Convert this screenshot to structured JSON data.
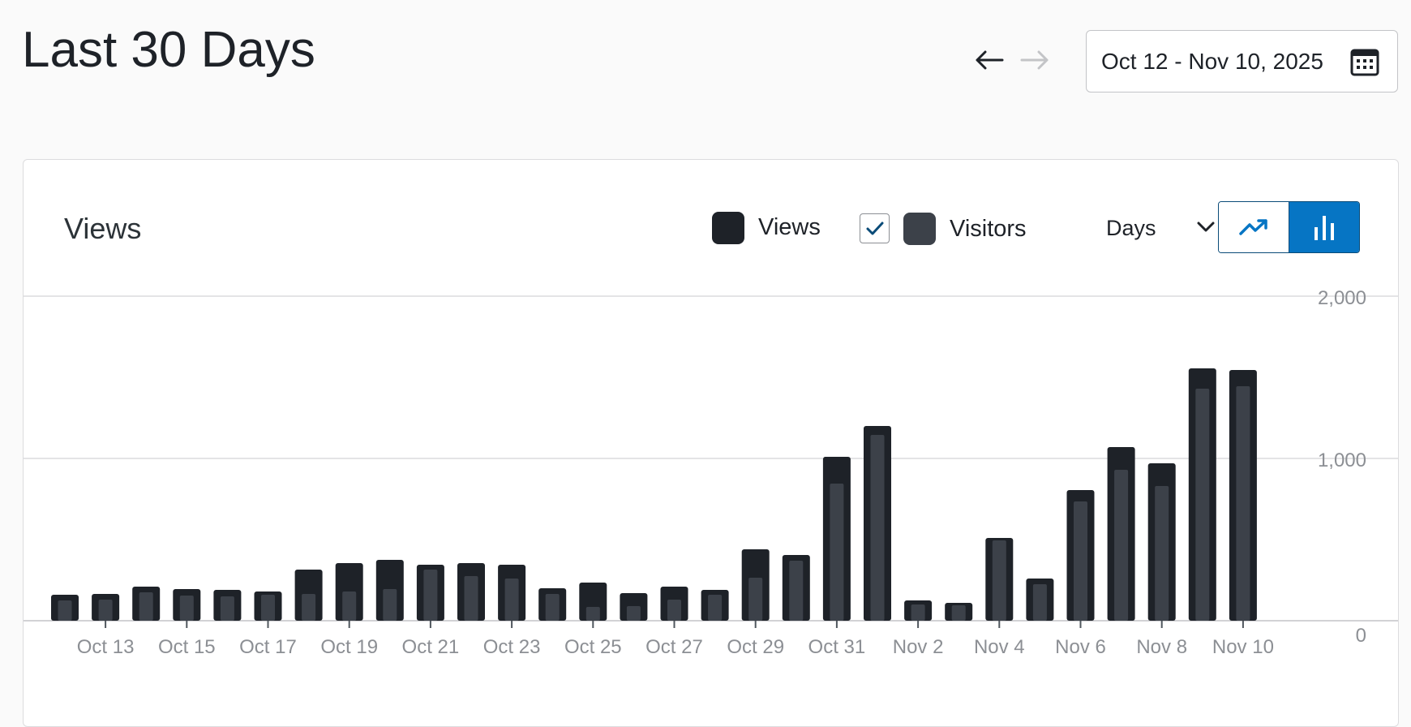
{
  "header": {
    "title": "Last 30 Days",
    "date_range": "Oct 12 - Nov 10, 2025",
    "prev_icon": "arrow-left-icon",
    "next_icon": "arrow-right-icon",
    "calendar_icon": "calendar-icon"
  },
  "card": {
    "title": "Views",
    "legend": [
      {
        "label": "Views",
        "color": "#1e2228",
        "checkable": false
      },
      {
        "label": "Visitors",
        "color": "#3c4149",
        "checkable": true,
        "checked": true
      }
    ],
    "period": "Days",
    "chart_types": [
      {
        "name": "line-chart-icon",
        "active": false
      },
      {
        "name": "bar-chart-icon",
        "active": true
      }
    ],
    "colors": {
      "accent": "#0675c4",
      "views": "#1e2228",
      "visitors": "#3c4149",
      "grid": "#dcdcde",
      "tick_label": "#8c8f94"
    }
  },
  "chart_data": {
    "type": "bar",
    "x": [
      "Oct 12",
      "Oct 13",
      "Oct 14",
      "Oct 15",
      "Oct 16",
      "Oct 17",
      "Oct 18",
      "Oct 19",
      "Oct 20",
      "Oct 21",
      "Oct 22",
      "Oct 23",
      "Oct 24",
      "Oct 25",
      "Oct 26",
      "Oct 27",
      "Oct 28",
      "Oct 29",
      "Oct 30",
      "Oct 31",
      "Nov 1",
      "Nov 2",
      "Nov 3",
      "Nov 4",
      "Nov 5",
      "Nov 6",
      "Nov 7",
      "Nov 8",
      "Nov 9",
      "Nov 10"
    ],
    "x_tick_labels": [
      "Oct 13",
      "Oct 15",
      "Oct 17",
      "Oct 19",
      "Oct 21",
      "Oct 23",
      "Oct 25",
      "Oct 27",
      "Oct 29",
      "Oct 31",
      "Nov 2",
      "Nov 4",
      "Nov 6",
      "Nov 8",
      "Nov 10"
    ],
    "series": [
      {
        "name": "Views",
        "values": [
          160,
          165,
          210,
          195,
          190,
          180,
          315,
          355,
          375,
          345,
          355,
          345,
          200,
          235,
          170,
          210,
          190,
          440,
          405,
          1010,
          1200,
          125,
          110,
          510,
          260,
          805,
          1070,
          970,
          1555,
          1545
        ]
      },
      {
        "name": "Visitors",
        "values": [
          125,
          130,
          175,
          155,
          150,
          160,
          165,
          180,
          195,
          315,
          275,
          260,
          165,
          85,
          90,
          130,
          160,
          265,
          370,
          845,
          1145,
          100,
          95,
          495,
          225,
          735,
          930,
          830,
          1430,
          1445
        ]
      }
    ],
    "ylim": [
      0,
      2000
    ],
    "y_ticks": [
      "0",
      "1,000",
      "2,000"
    ],
    "grid": true,
    "title": "",
    "xlabel": "",
    "ylabel": ""
  }
}
